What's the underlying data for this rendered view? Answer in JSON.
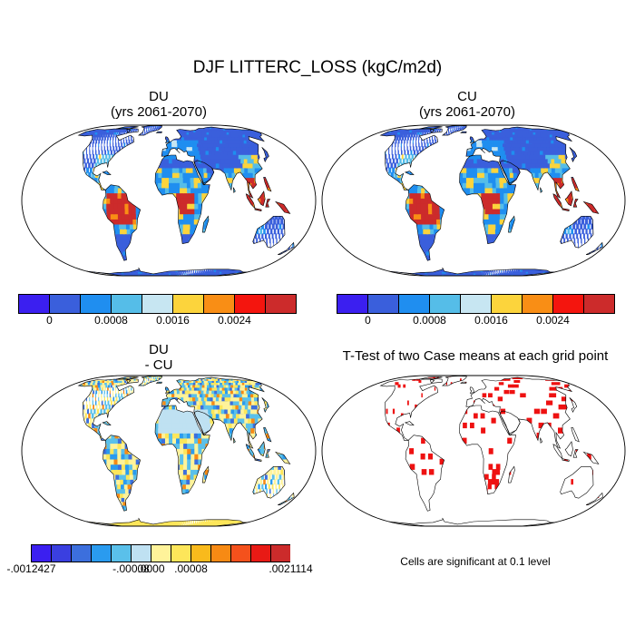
{
  "title": "DJF LITTERC_LOSS (kgC/m2d)",
  "colors": {
    "scale_main": [
      "#3b1ff0",
      "#3a5fdc",
      "#1f8ef0",
      "#55bde8",
      "#c7e6f2",
      "#fcd43c",
      "#f98e15",
      "#f4150e",
      "#cc2b2b"
    ],
    "scale_diff": [
      "#3b1ff0",
      "#3a3fe0",
      "#3c6fdd",
      "#2a9bef",
      "#5ac0ea",
      "#bfe1f2",
      "#fff39a",
      "#fde65a",
      "#f9ba1c",
      "#f78a14",
      "#f4511c",
      "#e81a15",
      "#cc2b2b"
    ],
    "ocean": "#ffffff",
    "signif": "#ee1111"
  },
  "chart_data": [
    {
      "type": "heatmap",
      "map": "world",
      "title": "DU",
      "subtitle": "(yrs 2061-2070)",
      "colorbar": {
        "tick_labels": [
          "0",
          "0.0008",
          "0.0016",
          "0.0024"
        ],
        "tick_after_box": [
          1,
          3,
          5,
          7
        ]
      }
    },
    {
      "type": "heatmap",
      "map": "world",
      "title": "CU",
      "subtitle": "(yrs 2061-2070)",
      "colorbar": {
        "tick_labels": [
          "0",
          "0.0008",
          "0.0016",
          "0.0024"
        ],
        "tick_after_box": [
          1,
          3,
          5,
          7
        ]
      }
    },
    {
      "type": "heatmap",
      "map": "world",
      "title": "DU",
      "subtitle": "- CU",
      "colorbar": {
        "tick_labels": [
          "-.0012427",
          "-.00008",
          ".0000",
          ".00008",
          ".0021114"
        ],
        "tick_after_box": [
          0,
          5,
          6,
          8,
          13
        ]
      }
    },
    {
      "type": "heatmap",
      "map": "world",
      "title": "T-Test of two Case means at each grid point",
      "note": "Cells are significant at 0.1 level"
    }
  ]
}
